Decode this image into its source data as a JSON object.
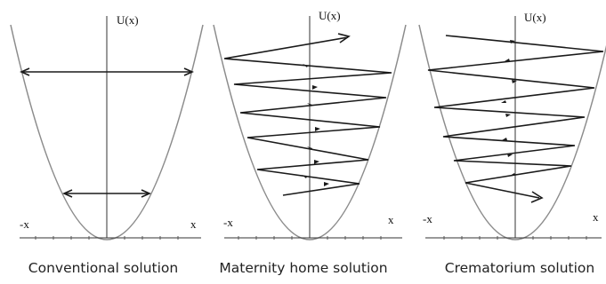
{
  "panels": [
    {
      "id": "conventional",
      "y_axis_label": "U(x)",
      "x_neg_label": "-x",
      "x_pos_label": "x",
      "caption": "Conventional solution"
    },
    {
      "id": "maternity",
      "y_axis_label": "U(x)",
      "x_neg_label": "-x",
      "x_pos_label": "x",
      "caption": "Maternity home solution"
    },
    {
      "id": "crematorium",
      "y_axis_label": "U(x)",
      "x_neg_label": "-x",
      "x_pos_label": "x",
      "caption": "Crematorium solution"
    }
  ],
  "colors": {
    "curve": "#8c8c8c",
    "axis": "#333333",
    "trajectory": "#1a1a1a"
  }
}
